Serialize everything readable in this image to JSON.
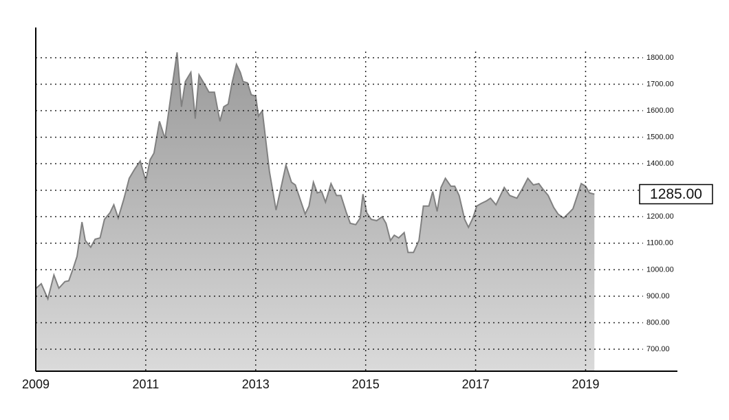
{
  "chart_data": {
    "type": "area",
    "x": [
      2009.0,
      2009.1,
      2009.22,
      2009.33,
      2009.42,
      2009.53,
      2009.6,
      2009.68,
      2009.75,
      2009.84,
      2009.9,
      2010.0,
      2010.08,
      2010.17,
      2010.25,
      2010.35,
      2010.42,
      2010.5,
      2010.6,
      2010.7,
      2010.8,
      2010.9,
      2011.0,
      2011.08,
      2011.15,
      2011.25,
      2011.35,
      2011.42,
      2011.5,
      2011.57,
      2011.65,
      2011.72,
      2011.82,
      2011.9,
      2011.97,
      2012.07,
      2012.15,
      2012.25,
      2012.35,
      2012.42,
      2012.5,
      2012.57,
      2012.65,
      2012.72,
      2012.77,
      2012.85,
      2012.92,
      2013.0,
      2013.05,
      2013.12,
      2013.25,
      2013.37,
      2013.55,
      2013.65,
      2013.72,
      2013.9,
      2013.97,
      2014.05,
      2014.12,
      2014.2,
      2014.27,
      2014.37,
      2014.47,
      2014.55,
      2014.65,
      2014.72,
      2014.82,
      2014.9,
      2014.95,
      2015.02,
      2015.1,
      2015.2,
      2015.3,
      2015.37,
      2015.45,
      2015.52,
      2015.6,
      2015.7,
      2015.77,
      2015.87,
      2015.97,
      2016.05,
      2016.15,
      2016.22,
      2016.3,
      2016.37,
      2016.45,
      2016.55,
      2016.62,
      2016.7,
      2016.8,
      2016.87,
      2016.95,
      2017.02,
      2017.1,
      2017.2,
      2017.27,
      2017.37,
      2017.52,
      2017.62,
      2017.75,
      2017.85,
      2017.95,
      2018.05,
      2018.15,
      2018.22,
      2018.32,
      2018.42,
      2018.5,
      2018.6,
      2018.7,
      2018.77,
      2018.85,
      2018.92,
      2019.0,
      2019.07,
      2019.16
    ],
    "values": [
      929,
      947,
      890,
      980,
      930,
      955,
      958,
      1005,
      1050,
      1180,
      1110,
      1085,
      1115,
      1120,
      1190,
      1215,
      1245,
      1195,
      1265,
      1345,
      1380,
      1410,
      1335,
      1415,
      1440,
      1560,
      1495,
      1600,
      1720,
      1820,
      1615,
      1710,
      1745,
      1570,
      1735,
      1700,
      1670,
      1670,
      1560,
      1615,
      1625,
      1705,
      1775,
      1745,
      1710,
      1705,
      1660,
      1655,
      1580,
      1600,
      1370,
      1225,
      1395,
      1330,
      1320,
      1210,
      1240,
      1330,
      1290,
      1295,
      1255,
      1325,
      1280,
      1280,
      1215,
      1175,
      1170,
      1195,
      1285,
      1215,
      1190,
      1185,
      1200,
      1175,
      1110,
      1130,
      1120,
      1140,
      1065,
      1065,
      1110,
      1240,
      1240,
      1295,
      1220,
      1310,
      1345,
      1315,
      1315,
      1280,
      1190,
      1160,
      1195,
      1240,
      1250,
      1260,
      1270,
      1245,
      1310,
      1280,
      1270,
      1305,
      1345,
      1320,
      1325,
      1305,
      1280,
      1235,
      1210,
      1195,
      1215,
      1230,
      1280,
      1325,
      1315,
      1290,
      1285
    ],
    "color": "#808080",
    "xlim": [
      2009,
      2020.67
    ],
    "xticks": [
      2009,
      2011,
      2013,
      2015,
      2017,
      2019
    ],
    "ylim": [
      617,
      1914
    ],
    "yticks": [
      {
        "value": 700,
        "label": "700.00"
      },
      {
        "value": 800,
        "label": "800.00"
      },
      {
        "value": 900,
        "label": "900.00"
      },
      {
        "value": 1000,
        "label": "1000.00"
      },
      {
        "value": 1100,
        "label": "1100.00"
      },
      {
        "value": 1200,
        "label": "1200.00"
      },
      {
        "value": 1300,
        "label": "1300.00"
      },
      {
        "value": 1400,
        "label": "1400.00"
      },
      {
        "value": 1500,
        "label": "1500.00"
      },
      {
        "value": 1600,
        "label": "1600.00"
      },
      {
        "value": 1700,
        "label": "1700.00"
      },
      {
        "value": 1800,
        "label": "1800.00"
      }
    ],
    "grid": true,
    "last_label": {
      "value": 1285,
      "label": "1285.00"
    }
  }
}
